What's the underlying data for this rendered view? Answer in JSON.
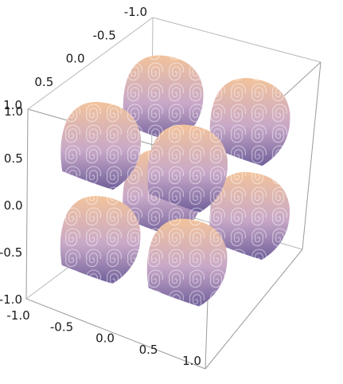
{
  "chart_data": {
    "type": "surface3d",
    "title": "",
    "xlabel": "",
    "ylabel": "",
    "zlabel": "",
    "xlim": [
      -1.0,
      1.0
    ],
    "ylim": [
      -1.0,
      1.0
    ],
    "zlim": [
      -1.0,
      1.0
    ],
    "box": true,
    "grid": false,
    "legend": "none",
    "texture": "spiral-swirl",
    "ticks": {
      "front_x": [
        "-1.0",
        "-0.5",
        "0.0",
        "0.5",
        "1.0"
      ],
      "back_axis": [
        "-1.0",
        "-0.5",
        "0.0",
        "0.5",
        "1.0"
      ],
      "vertical": [
        "1.0",
        "0.5",
        "0.0",
        "-0.5",
        "-1.0"
      ]
    },
    "surfaces": [
      {
        "cx": -0.5,
        "cy": -0.5,
        "cz": 0.5
      },
      {
        "cx": 0.5,
        "cy": -0.5,
        "cz": 0.5
      },
      {
        "cx": -0.5,
        "cy": 0.5,
        "cz": 0.5
      },
      {
        "cx": 0.5,
        "cy": 0.5,
        "cz": 0.5
      },
      {
        "cx": -0.5,
        "cy": -0.5,
        "cz": -0.5
      },
      {
        "cx": 0.5,
        "cy": -0.5,
        "cz": -0.5
      },
      {
        "cx": -0.5,
        "cy": 0.5,
        "cz": -0.5
      },
      {
        "cx": 0.5,
        "cy": 0.5,
        "cz": -0.5
      }
    ],
    "colors": {
      "top": "#f2c39b",
      "mid": "#c8a8c8",
      "bottom": "#6f5f9a",
      "swirl": "#ffffff",
      "box_line": "#9a9a9a"
    }
  }
}
